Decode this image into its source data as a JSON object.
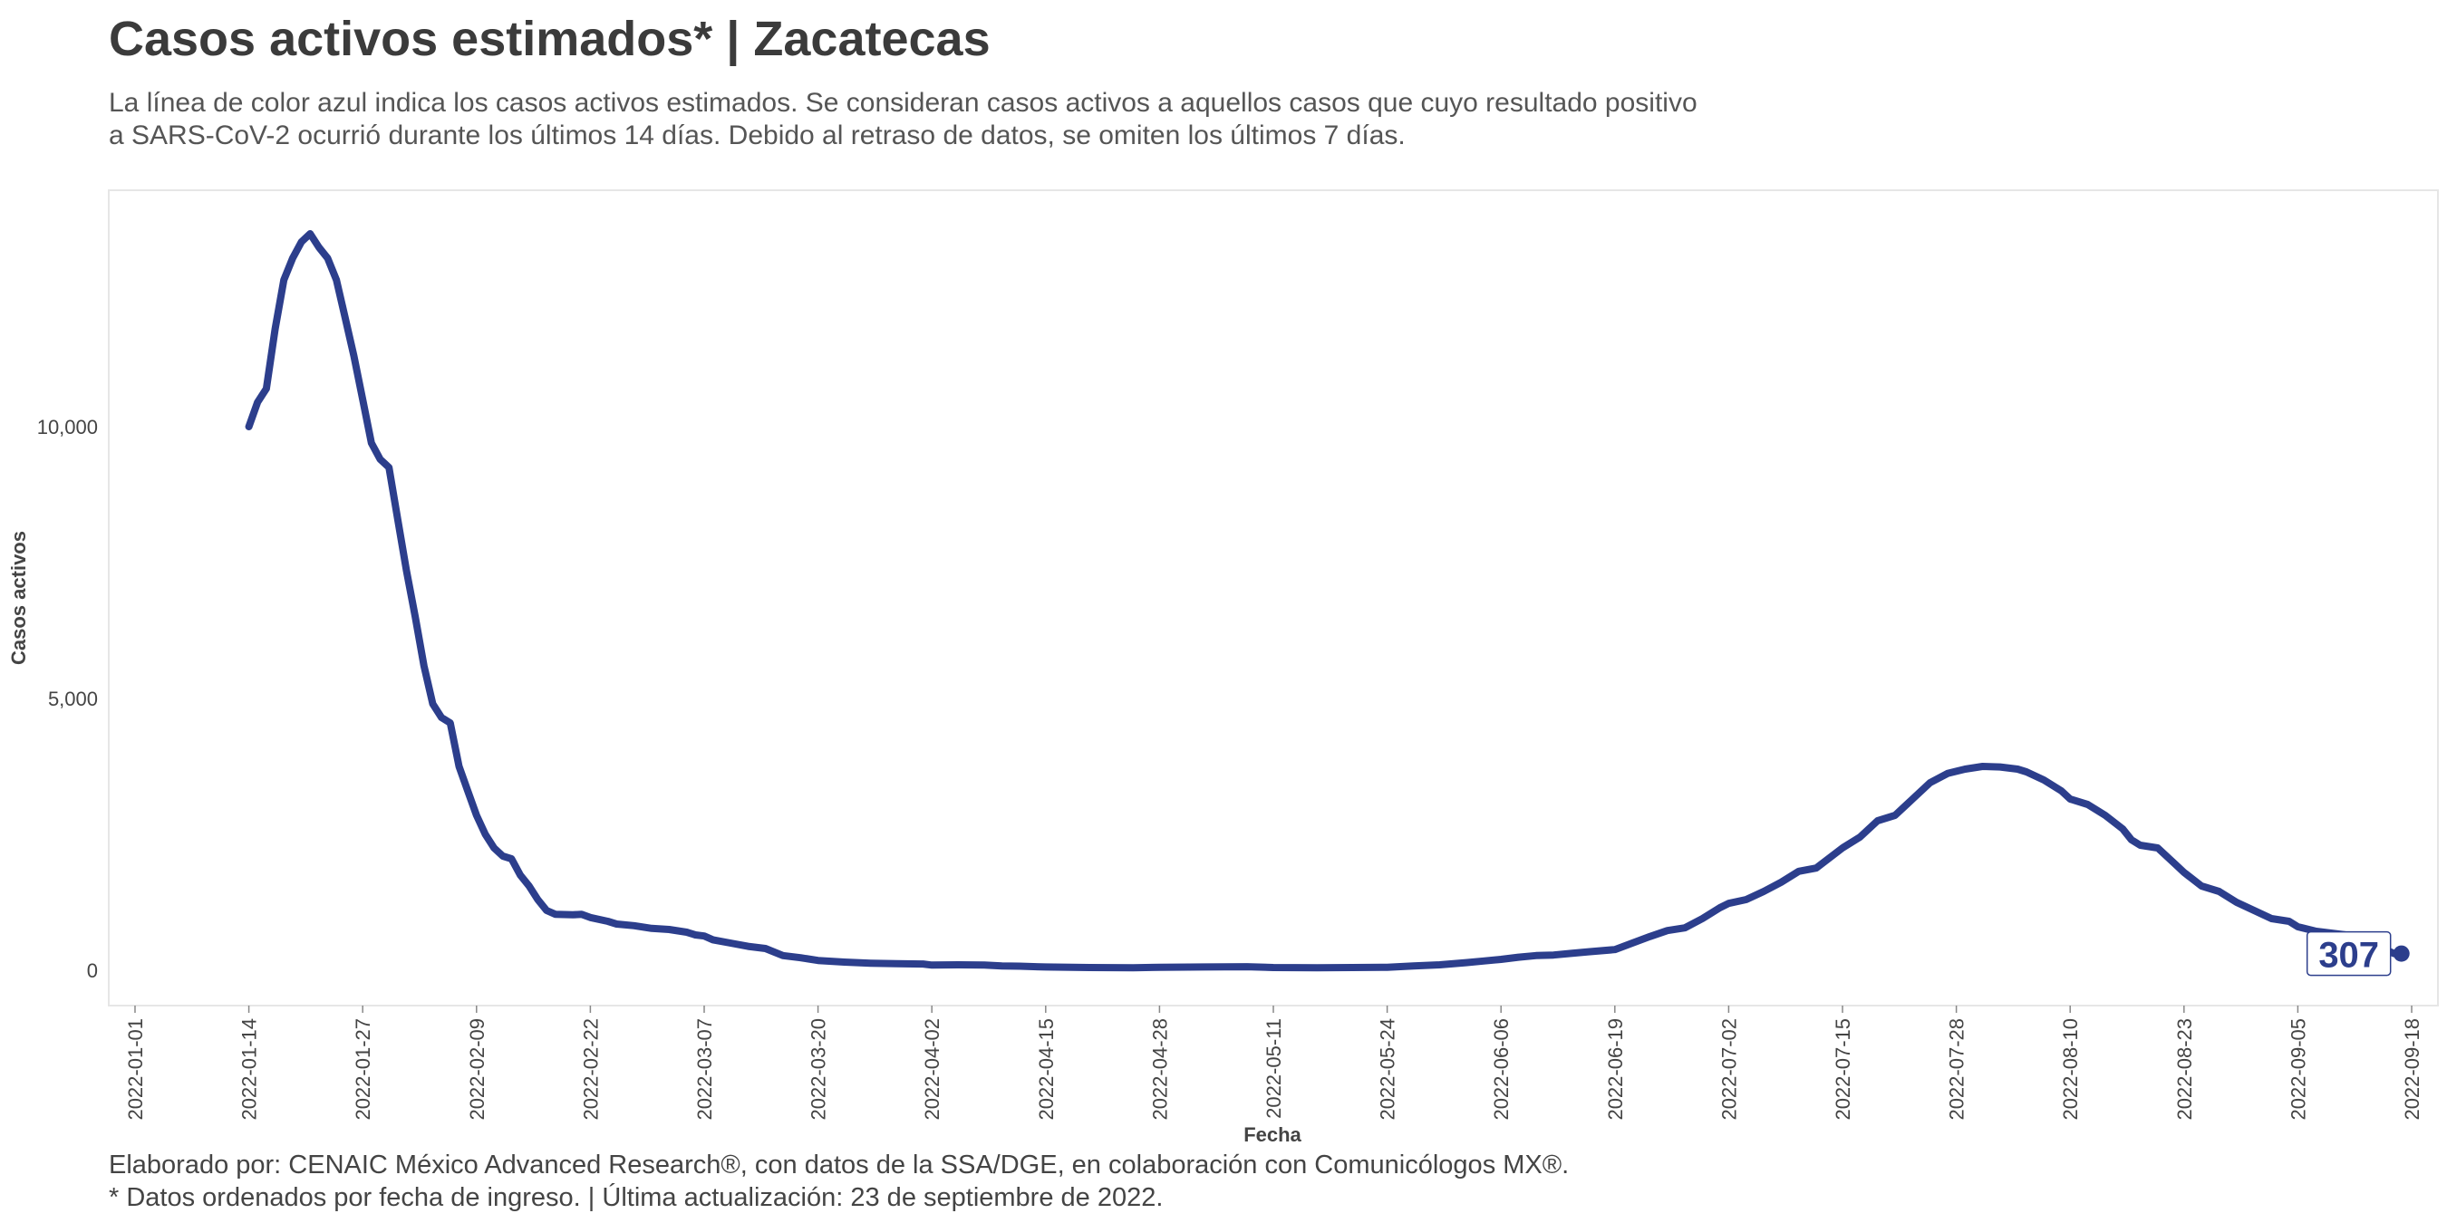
{
  "header": {
    "title": "Casos activos estimados* | Zacatecas",
    "subtitle_line1": "La línea de color azul indica los casos activos estimados. Se consideran casos activos a aquellos casos que cuyo resultado positivo",
    "subtitle_line2": "a SARS-CoV-2 ocurrió durante los últimos 14 días. Debido al retraso de datos, se omiten los últimos 7 días."
  },
  "footer": {
    "line1": "Elaborado por: CENAIC México Advanced Research®, con datos de la SSA/DGE, en colaboración con Comunicólogos MX®.",
    "line2": "* Datos ordenados por fecha de ingreso. | Última actualización: 23 de septiembre de 2022."
  },
  "chart_data": {
    "type": "line",
    "xlabel": "Fecha",
    "ylabel": "Casos activos",
    "x_ticks": [
      "2022-01-01",
      "2022-01-14",
      "2022-01-27",
      "2022-02-09",
      "2022-02-22",
      "2022-03-07",
      "2022-03-20",
      "2022-04-02",
      "2022-04-15",
      "2022-04-28",
      "2022-05-11",
      "2022-05-24",
      "2022-06-06",
      "2022-06-19",
      "2022-07-02",
      "2022-07-15",
      "2022-07-28",
      "2022-08-10",
      "2022-08-23",
      "2022-09-05",
      "2022-09-18"
    ],
    "y_ticks": [
      0,
      5000,
      10000
    ],
    "y_tick_labels": [
      "0",
      "5,000",
      "10,000"
    ],
    "xlim": [
      "2021-12-29",
      "2022-09-21"
    ],
    "ylim": [
      -650,
      14350
    ],
    "grid": false,
    "line_color": "#2c3e8c",
    "end_label": "307",
    "series": [
      {
        "points": [
          [
            "2022-01-14",
            10000
          ],
          [
            "2022-01-15",
            10450
          ],
          [
            "2022-01-16",
            10700
          ],
          [
            "2022-01-17",
            11800
          ],
          [
            "2022-01-18",
            12700
          ],
          [
            "2022-01-19",
            13100
          ],
          [
            "2022-01-20",
            13400
          ],
          [
            "2022-01-21",
            13550
          ],
          [
            "2022-01-22",
            13300
          ],
          [
            "2022-01-23",
            13100
          ],
          [
            "2022-01-24",
            12700
          ],
          [
            "2022-01-25",
            12000
          ],
          [
            "2022-01-26",
            11300
          ],
          [
            "2022-01-27",
            10500
          ],
          [
            "2022-01-28",
            9700
          ],
          [
            "2022-01-29",
            9400
          ],
          [
            "2022-01-30",
            9250
          ],
          [
            "2022-01-31",
            8300
          ],
          [
            "2022-02-01",
            7350
          ],
          [
            "2022-02-02",
            6500
          ],
          [
            "2022-02-03",
            5600
          ],
          [
            "2022-02-04",
            4900
          ],
          [
            "2022-02-05",
            4650
          ],
          [
            "2022-02-06",
            4550
          ],
          [
            "2022-02-07",
            3750
          ],
          [
            "2022-02-08",
            3300
          ],
          [
            "2022-02-09",
            2850
          ],
          [
            "2022-02-10",
            2500
          ],
          [
            "2022-02-11",
            2250
          ],
          [
            "2022-02-12",
            2100
          ],
          [
            "2022-02-13",
            2050
          ],
          [
            "2022-02-14",
            1750
          ],
          [
            "2022-02-15",
            1550
          ],
          [
            "2022-02-16",
            1300
          ],
          [
            "2022-02-17",
            1100
          ],
          [
            "2022-02-18",
            1030
          ],
          [
            "2022-02-20",
            1020
          ],
          [
            "2022-02-21",
            1030
          ],
          [
            "2022-02-22",
            970
          ],
          [
            "2022-02-24",
            900
          ],
          [
            "2022-02-25",
            850
          ],
          [
            "2022-02-27",
            820
          ],
          [
            "2022-03-01",
            770
          ],
          [
            "2022-03-03",
            750
          ],
          [
            "2022-03-05",
            700
          ],
          [
            "2022-03-06",
            650
          ],
          [
            "2022-03-07",
            630
          ],
          [
            "2022-03-08",
            560
          ],
          [
            "2022-03-10",
            500
          ],
          [
            "2022-03-12",
            440
          ],
          [
            "2022-03-14",
            400
          ],
          [
            "2022-03-16",
            270
          ],
          [
            "2022-03-18",
            230
          ],
          [
            "2022-03-20",
            180
          ],
          [
            "2022-03-23",
            150
          ],
          [
            "2022-03-26",
            130
          ],
          [
            "2022-03-29",
            120
          ],
          [
            "2022-04-01",
            115
          ],
          [
            "2022-04-02",
            95
          ],
          [
            "2022-04-05",
            100
          ],
          [
            "2022-04-08",
            95
          ],
          [
            "2022-04-10",
            80
          ],
          [
            "2022-04-12",
            75
          ],
          [
            "2022-04-15",
            60
          ],
          [
            "2022-04-20",
            50
          ],
          [
            "2022-04-25",
            45
          ],
          [
            "2022-04-28",
            55
          ],
          [
            "2022-05-03",
            60
          ],
          [
            "2022-05-08",
            65
          ],
          [
            "2022-05-11",
            50
          ],
          [
            "2022-05-16",
            45
          ],
          [
            "2022-05-20",
            50
          ],
          [
            "2022-05-24",
            55
          ],
          [
            "2022-05-27",
            80
          ],
          [
            "2022-05-30",
            100
          ],
          [
            "2022-06-02",
            140
          ],
          [
            "2022-06-04",
            170
          ],
          [
            "2022-06-06",
            200
          ],
          [
            "2022-06-08",
            240
          ],
          [
            "2022-06-10",
            270
          ],
          [
            "2022-06-12",
            280
          ],
          [
            "2022-06-14",
            310
          ],
          [
            "2022-06-16",
            340
          ],
          [
            "2022-06-19",
            380
          ],
          [
            "2022-06-21",
            500
          ],
          [
            "2022-06-23",
            620
          ],
          [
            "2022-06-25",
            730
          ],
          [
            "2022-06-27",
            780
          ],
          [
            "2022-06-29",
            950
          ],
          [
            "2022-07-01",
            1150
          ],
          [
            "2022-07-02",
            1230
          ],
          [
            "2022-07-04",
            1300
          ],
          [
            "2022-07-06",
            1450
          ],
          [
            "2022-07-08",
            1620
          ],
          [
            "2022-07-10",
            1820
          ],
          [
            "2022-07-12",
            1880
          ],
          [
            "2022-07-15",
            2250
          ],
          [
            "2022-07-17",
            2450
          ],
          [
            "2022-07-19",
            2750
          ],
          [
            "2022-07-21",
            2850
          ],
          [
            "2022-07-23",
            3150
          ],
          [
            "2022-07-25",
            3450
          ],
          [
            "2022-07-27",
            3620
          ],
          [
            "2022-07-29",
            3700
          ],
          [
            "2022-07-31",
            3750
          ],
          [
            "2022-08-02",
            3740
          ],
          [
            "2022-08-04",
            3700
          ],
          [
            "2022-08-05",
            3650
          ],
          [
            "2022-08-07",
            3500
          ],
          [
            "2022-08-09",
            3300
          ],
          [
            "2022-08-10",
            3150
          ],
          [
            "2022-08-12",
            3050
          ],
          [
            "2022-08-14",
            2850
          ],
          [
            "2022-08-16",
            2600
          ],
          [
            "2022-08-17",
            2400
          ],
          [
            "2022-08-18",
            2300
          ],
          [
            "2022-08-20",
            2250
          ],
          [
            "2022-08-22",
            1950
          ],
          [
            "2022-08-23",
            1800
          ],
          [
            "2022-08-25",
            1550
          ],
          [
            "2022-08-27",
            1450
          ],
          [
            "2022-08-29",
            1250
          ],
          [
            "2022-08-31",
            1100
          ],
          [
            "2022-09-02",
            950
          ],
          [
            "2022-09-04",
            900
          ],
          [
            "2022-09-05",
            800
          ],
          [
            "2022-09-07",
            720
          ],
          [
            "2022-09-09",
            680
          ],
          [
            "2022-09-11",
            640
          ],
          [
            "2022-09-13",
            480
          ],
          [
            "2022-09-15",
            380
          ],
          [
            "2022-09-16",
            307
          ]
        ]
      }
    ]
  }
}
